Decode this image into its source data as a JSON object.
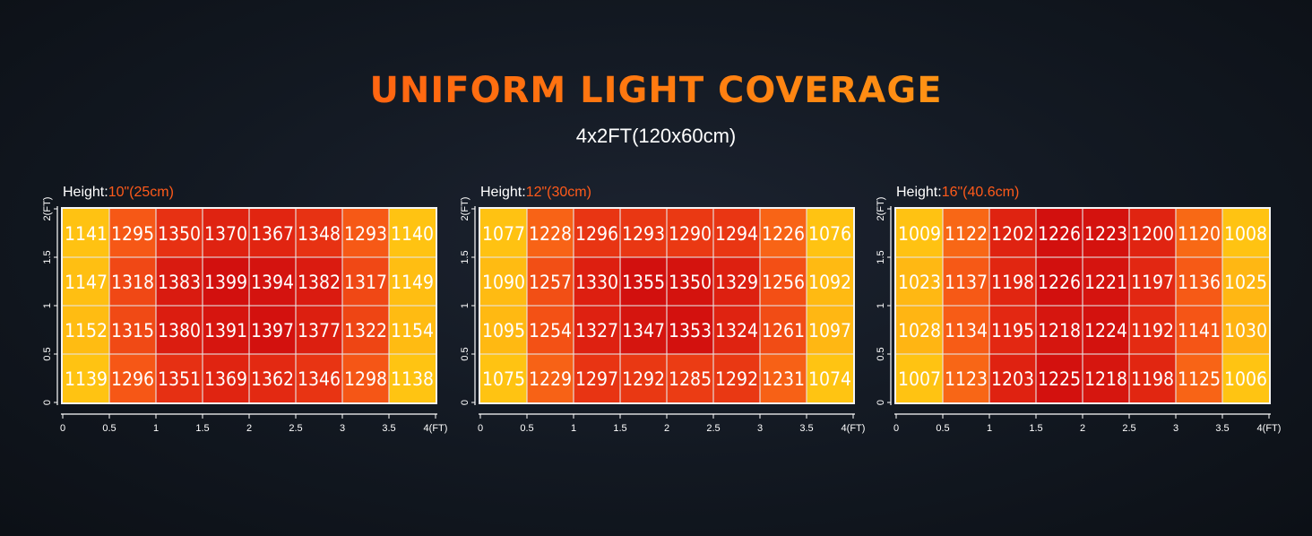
{
  "title": "UNIFORM LIGHT COVERAGE",
  "subtitle": "4x2FT(120x60cm)",
  "height_prefix": "Height:",
  "chart_data": [
    {
      "type": "heatmap",
      "height_value": "10\"(25cm)",
      "x_ticks": [
        "0",
        "0.5",
        "1",
        "1.5",
        "2",
        "2.5",
        "3",
        "3.5",
        "4(FT)"
      ],
      "y_ticks": [
        "0",
        "0.5",
        "1",
        "1.5",
        "2(FT)"
      ],
      "xlim": [
        0,
        4
      ],
      "ylim": [
        0,
        2
      ],
      "rows": [
        [
          1141,
          1295,
          1350,
          1370,
          1367,
          1348,
          1293,
          1140
        ],
        [
          1147,
          1318,
          1383,
          1399,
          1394,
          1382,
          1317,
          1149
        ],
        [
          1152,
          1315,
          1380,
          1391,
          1397,
          1377,
          1322,
          1154
        ],
        [
          1139,
          1296,
          1351,
          1369,
          1362,
          1346,
          1298,
          1138
        ]
      ]
    },
    {
      "type": "heatmap",
      "height_value": "12\"(30cm)",
      "x_ticks": [
        "0",
        "0.5",
        "1",
        "1.5",
        "2",
        "2.5",
        "3",
        "3.5",
        "4(FT)"
      ],
      "y_ticks": [
        "0",
        "0.5",
        "1",
        "1.5",
        "2(FT)"
      ],
      "xlim": [
        0,
        4
      ],
      "ylim": [
        0,
        2
      ],
      "rows": [
        [
          1077,
          1228,
          1296,
          1293,
          1290,
          1294,
          1226,
          1076
        ],
        [
          1090,
          1257,
          1330,
          1355,
          1350,
          1329,
          1256,
          1092
        ],
        [
          1095,
          1254,
          1327,
          1347,
          1353,
          1324,
          1261,
          1097
        ],
        [
          1075,
          1229,
          1297,
          1292,
          1285,
          1292,
          1231,
          1074
        ]
      ]
    },
    {
      "type": "heatmap",
      "height_value": "16\"(40.6cm)",
      "x_ticks": [
        "0",
        "0.5",
        "1",
        "1.5",
        "2",
        "2.5",
        "3",
        "3.5",
        "4(FT)"
      ],
      "y_ticks": [
        "0",
        "0.5",
        "1",
        "1.5",
        "2(FT)"
      ],
      "xlim": [
        0,
        4
      ],
      "ylim": [
        0,
        2
      ],
      "rows": [
        [
          1009,
          1122,
          1202,
          1226,
          1223,
          1200,
          1120,
          1008
        ],
        [
          1023,
          1137,
          1198,
          1226,
          1221,
          1197,
          1136,
          1025
        ],
        [
          1028,
          1134,
          1195,
          1218,
          1224,
          1192,
          1141,
          1030
        ],
        [
          1007,
          1123,
          1203,
          1225,
          1218,
          1198,
          1125,
          1006
        ]
      ]
    }
  ]
}
